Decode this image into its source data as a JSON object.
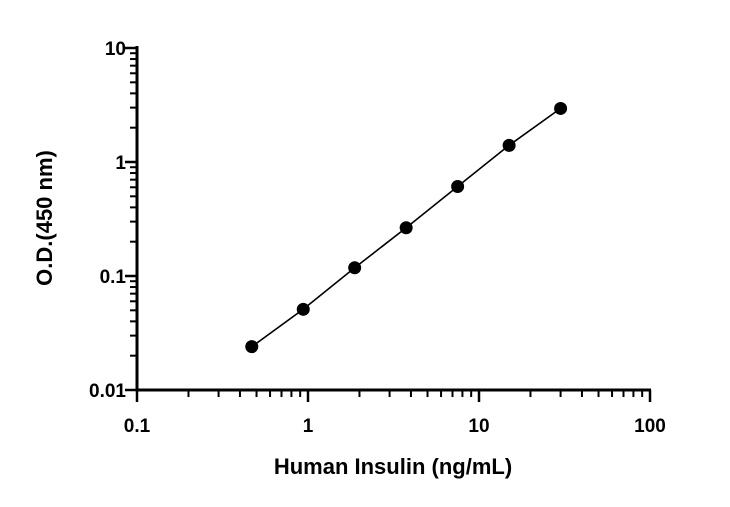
{
  "chart_data": {
    "type": "scatter",
    "title": "",
    "xlabel": "Human Insulin (ng/mL)",
    "ylabel": "O.D.(450 nm)",
    "xscale": "log",
    "yscale": "log",
    "xlim": [
      0.1,
      100
    ],
    "ylim": [
      0.01,
      10
    ],
    "x_tick_labels": [
      "0.1",
      "1",
      "10",
      "100"
    ],
    "y_tick_labels": [
      "0.01",
      "0.1",
      "1",
      "10"
    ],
    "grid": false,
    "fit_line": true,
    "series": [
      {
        "x": [
          0.469,
          0.938,
          1.875,
          3.75,
          7.5,
          15,
          30
        ],
        "y": [
          0.024,
          0.051,
          0.118,
          0.265,
          0.61,
          1.4,
          2.95
        ]
      }
    ]
  }
}
